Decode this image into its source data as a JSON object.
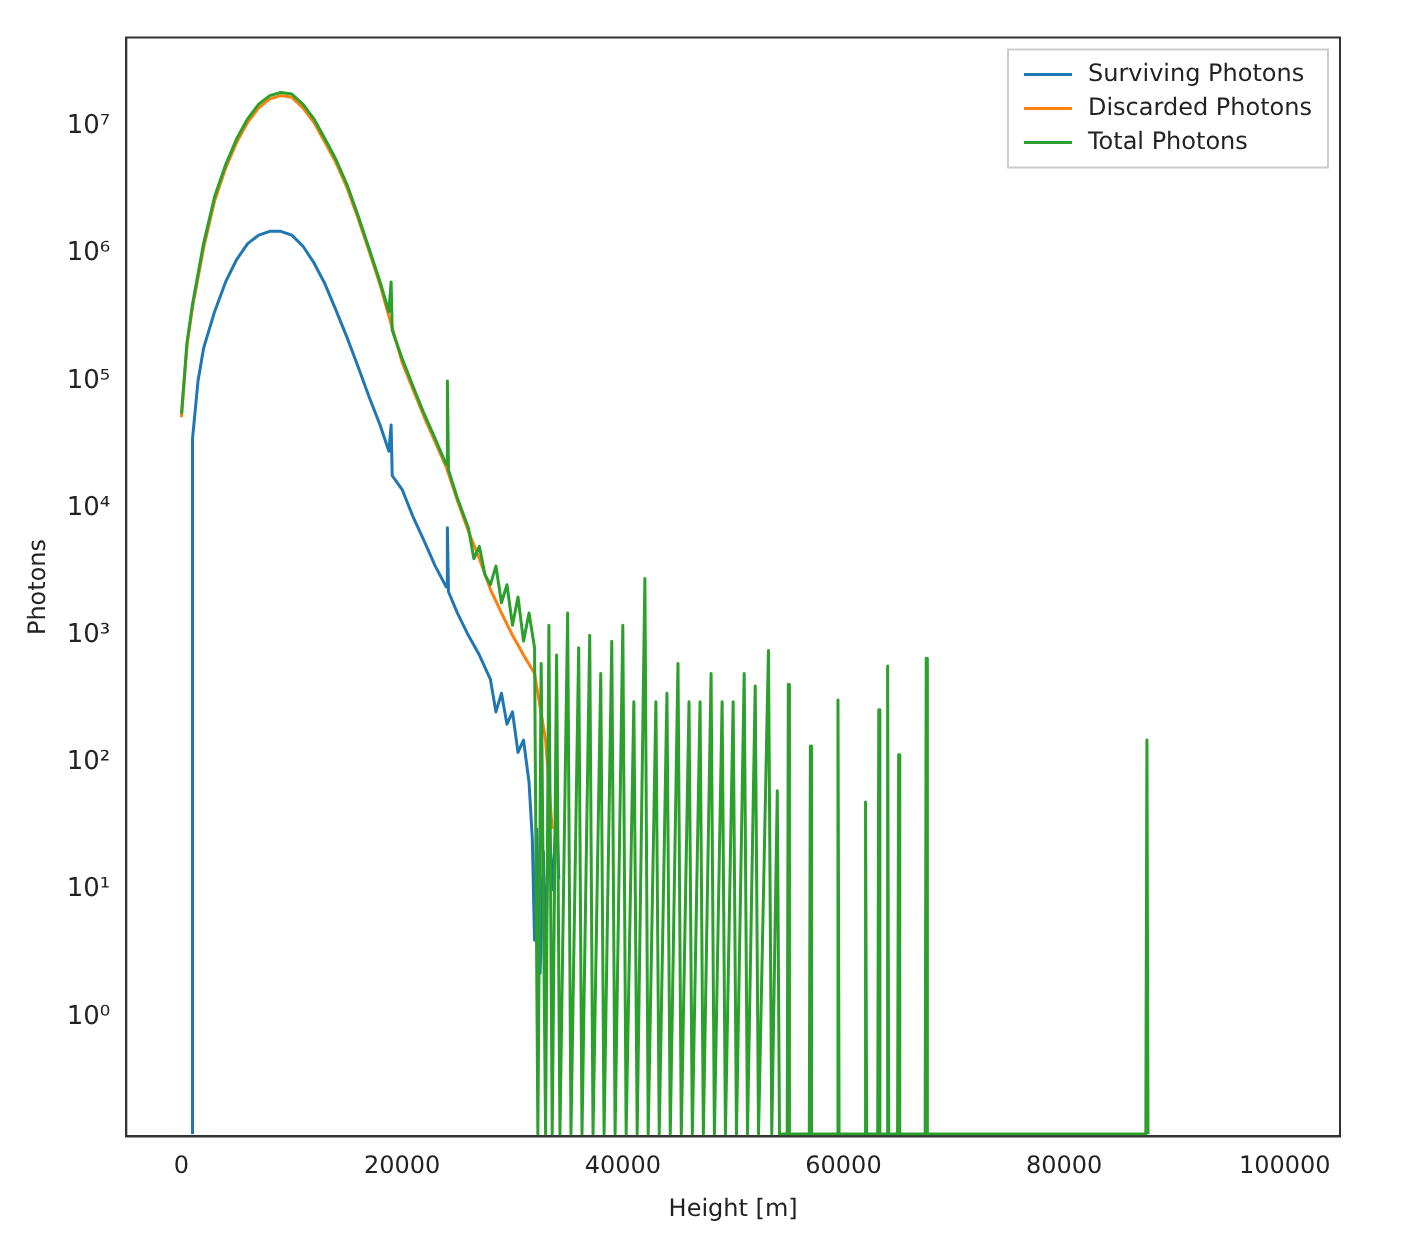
{
  "chart_data": {
    "type": "line",
    "xlabel": "Height [m]",
    "ylabel": "Photons",
    "xlim": [
      -5000,
      105000
    ],
    "xticks": [
      0,
      20000,
      40000,
      60000,
      80000,
      100000
    ],
    "ylim": [
      0.115,
      50000000
    ],
    "yticks": [
      {
        "value": 1,
        "label": "10⁰"
      },
      {
        "value": 10,
        "label": "10¹"
      },
      {
        "value": 100,
        "label": "10²"
      },
      {
        "value": 1000,
        "label": "10³"
      },
      {
        "value": 10000,
        "label": "10⁴"
      },
      {
        "value": 100000,
        "label": "10⁵"
      },
      {
        "value": 1000000,
        "label": "10⁶"
      },
      {
        "value": 10000000,
        "label": "10⁷"
      }
    ],
    "log": "y",
    "grid": false,
    "legend": "top right",
    "marker": "none",
    "line_style": "solid",
    "series": [
      {
        "name": "Surviving Photons",
        "color": "#1f77b4",
        "x": [
          1000,
          1000,
          1500,
          2000,
          3000,
          4000,
          5000,
          6000,
          7000,
          8000,
          9000,
          10000,
          11000,
          12000,
          13000,
          14000,
          15000,
          16000,
          17000,
          18000,
          18800,
          19000,
          19100,
          20000,
          21000,
          22000,
          23000,
          24000,
          24100,
          24200,
          25000,
          26000,
          27000,
          28000,
          28500,
          29000,
          29500,
          30000,
          30500,
          31000,
          31500,
          31800,
          32000,
          32200,
          32500,
          32800,
          33000,
          33300,
          33600,
          34000,
          34200
        ],
        "values": [
          0.12,
          35000,
          100000,
          180000,
          350000,
          600000,
          900000,
          1200000,
          1400000,
          1500000,
          1500000,
          1400000,
          1150000,
          850000,
          580000,
          360000,
          220000,
          130000,
          75000,
          45000,
          28000,
          45000,
          18000,
          14000,
          8500,
          5500,
          3500,
          2400,
          7000,
          2200,
          1500,
          1000,
          700,
          450,
          250,
          350,
          200,
          250,
          120,
          150,
          70,
          25,
          4,
          30,
          2.2,
          20,
          3,
          40,
          10,
          40,
          12
        ]
      },
      {
        "name": "Discarded Photons",
        "color": "#ff7f0e",
        "x": [
          0,
          500,
          1000,
          2000,
          3000,
          4000,
          5000,
          6000,
          7000,
          8000,
          9000,
          10000,
          11000,
          12000,
          13000,
          14000,
          15000,
          16000,
          17000,
          18000,
          19000,
          20000,
          21000,
          22000,
          23000,
          24000,
          25000,
          26000,
          27000,
          28000,
          29000,
          30000,
          31000,
          32000,
          33000,
          33600
        ],
        "values": [
          52000,
          190000,
          380000,
          1100000,
          2600000,
          4700000,
          7500000,
          10800000,
          14000000,
          16500000,
          17500000,
          17000000,
          14000000,
          10800000,
          7500000,
          5200000,
          3300000,
          1900000,
          1050000,
          570000,
          280000,
          140000,
          85000,
          52000,
          33000,
          21000,
          11500,
          6600,
          4000,
          2300,
          1500,
          1000,
          700,
          500,
          150,
          30
        ]
      },
      {
        "name": "Total Photons",
        "color": "#2ca02c",
        "x": [
          0,
          500,
          1000,
          2000,
          3000,
          4000,
          5000,
          6000,
          7000,
          8000,
          9000,
          10000,
          11000,
          12000,
          13000,
          14000,
          15000,
          16000,
          17000,
          18000,
          18800,
          19000,
          19100,
          20000,
          21000,
          22000,
          23000,
          24000,
          24100,
          24200,
          25000,
          26000,
          26500,
          27000,
          27500,
          28000,
          28500,
          29000,
          29500,
          30000,
          30500,
          31000,
          31500,
          32000,
          32300,
          32600,
          33000,
          33300,
          33600,
          34000,
          34300,
          35000,
          35300,
          36000,
          36300,
          37000,
          37300,
          38000,
          38300,
          39000,
          39300,
          40000,
          40300,
          41000,
          41300,
          42000,
          42300,
          43000,
          43300,
          44000,
          44300,
          45000,
          45300,
          46000,
          46300,
          47000,
          47300,
          48000,
          48300,
          49000,
          49300,
          50000,
          50300,
          51000,
          51300,
          52000,
          52300,
          53200,
          53500,
          54000,
          54200,
          54900,
          55000,
          55100,
          56900,
          57000,
          57100,
          59400,
          59500,
          59600,
          61900,
          62000,
          62100,
          63100,
          63200,
          63300,
          63900,
          64000,
          64100,
          64900,
          65000,
          65100,
          67400,
          67500,
          67600,
          87400,
          87500,
          87600
        ],
        "values": [
          55000,
          200000,
          400000,
          1200000,
          2800000,
          5000000,
          8000000,
          11500000,
          15000000,
          17500000,
          18500000,
          18000000,
          15000000,
          11500000,
          8000000,
          5500000,
          3500000,
          2000000,
          1100000,
          600000,
          350000,
          600000,
          250000,
          150000,
          90000,
          55000,
          35000,
          22000,
          100000,
          20000,
          12000,
          7000,
          4000,
          5000,
          3000,
          2500,
          3500,
          1800,
          2500,
          1200,
          2000,
          900,
          1500,
          800,
          0.12,
          600,
          0.12,
          1200,
          0.12,
          700,
          0.12,
          1500,
          0.12,
          800,
          0.12,
          1000,
          0.12,
          500,
          0.12,
          900,
          0.12,
          1200,
          0.12,
          300,
          0.12,
          2800,
          0.12,
          300,
          0.12,
          350,
          0.12,
          600,
          0.12,
          300,
          0.12,
          300,
          0.12,
          500,
          0.12,
          300,
          0.12,
          300,
          0.12,
          500,
          0.12,
          400,
          0.12,
          760,
          0.12,
          60,
          0.12,
          0.12,
          410,
          0.12,
          0.12,
          135,
          0.12,
          0.12,
          310,
          0.12,
          0.12,
          49,
          0.12,
          0.12,
          260,
          0.12,
          0.12,
          575,
          0.12,
          0.12,
          115,
          0.12,
          0.12,
          660,
          0.12,
          0.12,
          150,
          0.12
        ]
      }
    ]
  }
}
